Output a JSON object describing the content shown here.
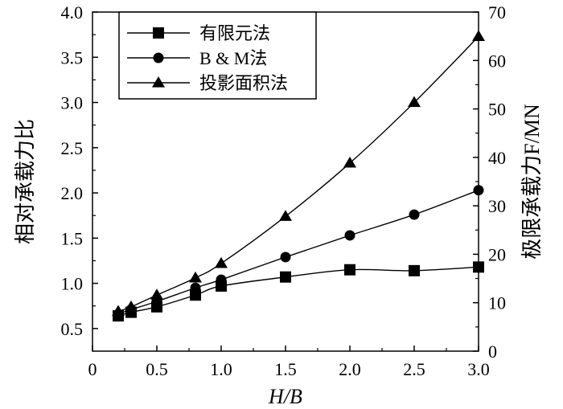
{
  "chart_data": {
    "type": "line",
    "title": "",
    "xlabel": "H/B",
    "ylabel_left": "相对承载力比",
    "ylabel_right": "极限承载力F/MN",
    "xlim": [
      0,
      3.0
    ],
    "ylim_left": [
      0.25,
      4.0
    ],
    "ylim_right": [
      0,
      70
    ],
    "x_ticks": [
      "0",
      "0.5",
      "1.0",
      "1.5",
      "2.0",
      "2.5",
      "3.0"
    ],
    "y_ticks_left": [
      "0.5",
      "1.0",
      "1.5",
      "2.0",
      "2.5",
      "3.0",
      "3.5",
      "4.0"
    ],
    "y_ticks_right": [
      "0",
      "10",
      "20",
      "30",
      "40",
      "50",
      "60",
      "70"
    ],
    "legend_position": "top-left",
    "series": [
      {
        "name": "有限元法",
        "marker": "square",
        "x": [
          0.2,
          0.3,
          0.5,
          0.8,
          1.0,
          1.5,
          2.0,
          2.5,
          3.0
        ],
        "y": [
          0.64,
          0.68,
          0.74,
          0.87,
          0.97,
          1.07,
          1.15,
          1.14,
          1.18
        ]
      },
      {
        "name": "B & M法",
        "marker": "circle",
        "x": [
          0.2,
          0.3,
          0.5,
          0.8,
          1.0,
          1.5,
          2.0,
          2.5,
          3.0
        ],
        "y": [
          0.66,
          0.71,
          0.8,
          0.95,
          1.04,
          1.29,
          1.53,
          1.76,
          2.03
        ]
      },
      {
        "name": "投影面积法",
        "marker": "triangle",
        "x": [
          0.2,
          0.3,
          0.5,
          0.8,
          1.0,
          1.5,
          2.0,
          2.5,
          3.0
        ],
        "y": [
          0.69,
          0.74,
          0.87,
          1.06,
          1.22,
          1.74,
          2.33,
          3.0,
          3.73
        ]
      }
    ]
  }
}
